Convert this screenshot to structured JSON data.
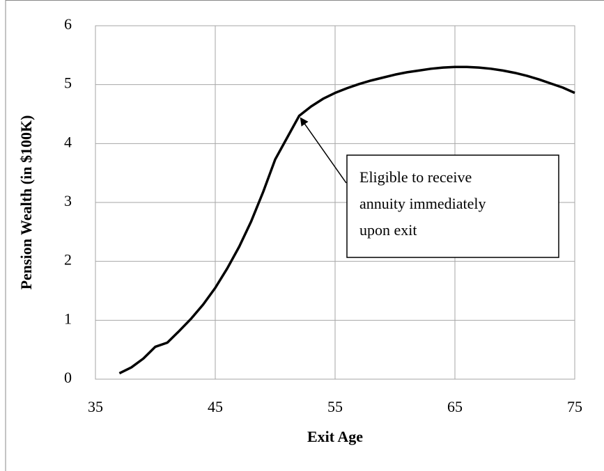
{
  "chart_data": {
    "type": "line",
    "x_label": "Exit Age",
    "y_label": "Pension Wealth (in $100K)",
    "x": [
      37,
      38,
      39,
      40,
      41,
      42,
      43,
      44,
      45,
      46,
      47,
      48,
      49,
      50,
      51,
      52,
      53,
      54,
      55,
      56,
      57,
      58,
      59,
      60,
      61,
      62,
      63,
      64,
      65,
      66,
      67,
      68,
      69,
      70,
      71,
      72,
      73,
      74,
      75
    ],
    "values": [
      0.1,
      0.2,
      0.35,
      0.55,
      0.62,
      0.82,
      1.03,
      1.27,
      1.55,
      1.88,
      2.25,
      2.68,
      3.18,
      3.73,
      4.1,
      4.47,
      4.63,
      4.76,
      4.86,
      4.94,
      5.01,
      5.07,
      5.12,
      5.17,
      5.21,
      5.24,
      5.27,
      5.29,
      5.3,
      5.3,
      5.29,
      5.27,
      5.24,
      5.2,
      5.15,
      5.09,
      5.02,
      4.95,
      4.86
    ],
    "color": "#000000",
    "xlim": [
      35,
      75
    ],
    "xticks": [
      35,
      45,
      55,
      65,
      75
    ],
    "ylim": [
      0,
      6
    ],
    "yticks": [
      0,
      1,
      2,
      3,
      4,
      5,
      6
    ],
    "grid": true,
    "annotation": {
      "lines": [
        "Eligible to receive",
        "annuity immediately",
        "upon exit"
      ],
      "x": 52,
      "y": 4.47
    }
  }
}
